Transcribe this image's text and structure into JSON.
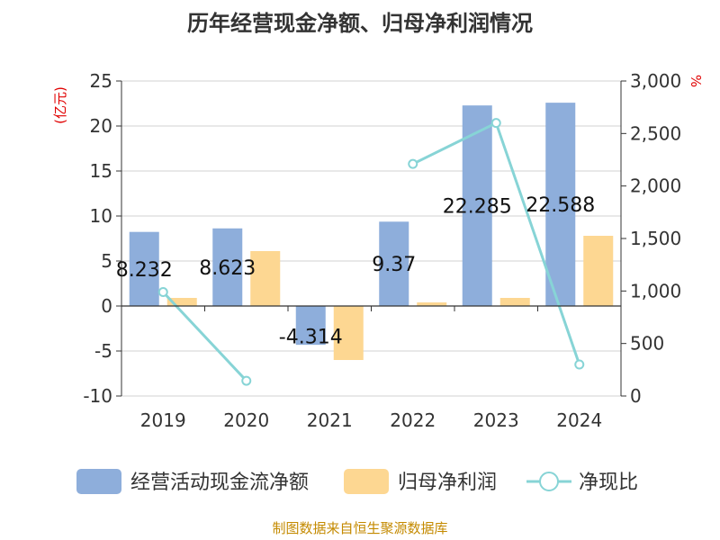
{
  "chart_data": {
    "type": "bar",
    "title": "历年经营现金净额、归母净利润情况",
    "categories": [
      "2019",
      "2020",
      "2021",
      "2022",
      "2023",
      "2024"
    ],
    "left_axis": {
      "unit": "(亿元)",
      "ylim": [
        -10,
        25
      ],
      "ticks": [
        25,
        20,
        15,
        10,
        5,
        0,
        -5,
        -10
      ]
    },
    "right_axis": {
      "unit": "%",
      "ylim": [
        0,
        3000
      ],
      "ticks": [
        3000,
        2500,
        2000,
        1500,
        1000,
        500,
        0
      ],
      "tick_labels": [
        "3,000",
        "2,500",
        "2,000",
        "1,500",
        "1,000",
        "500",
        "0"
      ]
    },
    "series": [
      {
        "name": "经营活动现金流净额",
        "type": "bar",
        "axis": "left",
        "color": "#8eaedb",
        "values": [
          8.232,
          8.623,
          -4.314,
          9.37,
          22.285,
          22.588
        ],
        "labels": [
          "8.232",
          "8.623",
          "-4.314",
          "9.37",
          "22.285",
          "22.588"
        ]
      },
      {
        "name": "归母净利润",
        "type": "bar",
        "axis": "left",
        "color": "#fdd792",
        "values": [
          0.9,
          6.1,
          -6.0,
          0.4,
          0.9,
          7.8
        ]
      },
      {
        "name": "净现比",
        "type": "line",
        "axis": "right",
        "color": "#87d4d6",
        "values": [
          990,
          145,
          null,
          2210,
          2600,
          300
        ]
      }
    ],
    "legend_position": "bottom",
    "grid": true
  },
  "footer": {
    "source": "制图数据来自恒生聚源数据库"
  }
}
